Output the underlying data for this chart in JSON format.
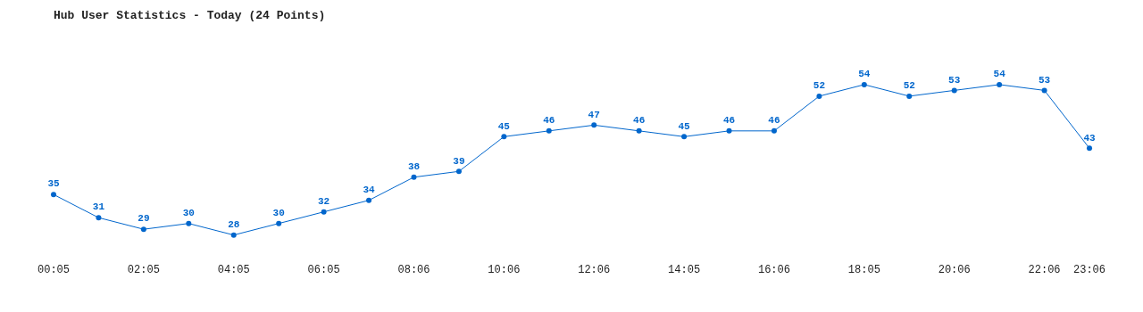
{
  "chart_data": {
    "type": "line",
    "title": "Hub User Statistics - Today (24 Points)",
    "categories": [
      "00:05",
      null,
      "02:05",
      null,
      "04:05",
      null,
      "06:05",
      null,
      "08:06",
      null,
      "10:06",
      null,
      "12:06",
      null,
      "14:05",
      null,
      "16:06",
      null,
      "18:05",
      null,
      "20:06",
      null,
      "22:06",
      "23:06"
    ],
    "values": [
      35,
      31,
      29,
      30,
      28,
      30,
      32,
      34,
      38,
      39,
      45,
      46,
      47,
      46,
      45,
      46,
      46,
      52,
      54,
      52,
      53,
      54,
      53,
      43
    ],
    "color": "#0066cc",
    "marker": "circle",
    "line_style": "solid",
    "data_labels": true,
    "grid": false,
    "legend": false
  }
}
